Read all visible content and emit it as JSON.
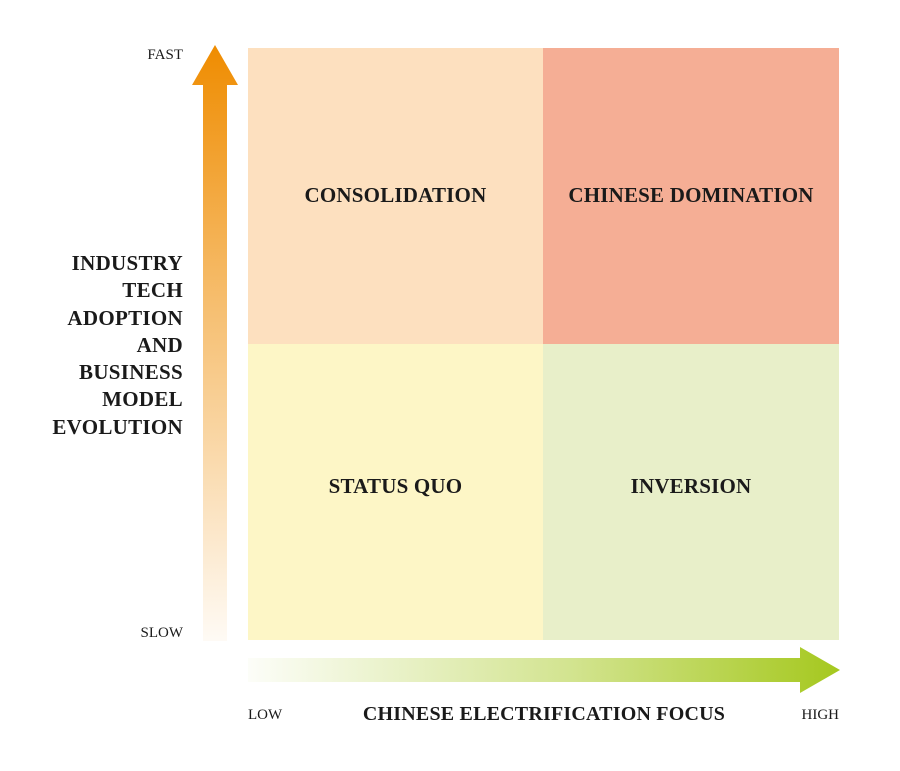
{
  "quadrants": {
    "top_left": {
      "label": "CONSOLIDATION",
      "color": "#fde0bf"
    },
    "top_right": {
      "label": "CHINESE DOMINATION",
      "color": "#f5ae95"
    },
    "bottom_left": {
      "label": "STATUS QUO",
      "color": "#fdf6c6"
    },
    "bottom_right": {
      "label": "INVERSION",
      "color": "#e8efc9"
    }
  },
  "y_axis": {
    "title_lines": [
      "INDUSTRY",
      "TECH",
      "ADOPTION",
      "AND",
      "BUSINESS",
      "MODEL",
      "EVOLUTION"
    ],
    "high_label": "FAST",
    "low_label": "SLOW",
    "arrow_color": "#ef8c00"
  },
  "x_axis": {
    "title": "CHINESE ELECTRIFICATION FOCUS",
    "low_label": "LOW",
    "high_label": "HIGH",
    "arrow_color": "#a5c81e"
  }
}
